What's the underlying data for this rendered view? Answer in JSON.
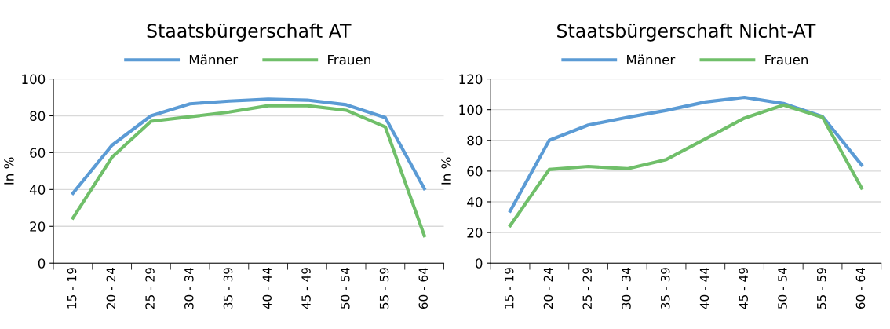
{
  "chart_data": [
    {
      "type": "line",
      "title": "Staatsbürgerschaft AT",
      "ylabel": "In %",
      "categories": [
        "15 - 19",
        "20 - 24",
        "25 - 29",
        "30 - 34",
        "35 - 39",
        "40 - 44",
        "45 - 49",
        "50 - 54",
        "55 - 59",
        "60 - 64"
      ],
      "series": [
        {
          "name": "Männer",
          "color": "#5b9bd5",
          "values": [
            38,
            64,
            80,
            86.5,
            88,
            89,
            88.5,
            86,
            79,
            40.5
          ]
        },
        {
          "name": "Frauen",
          "color": "#70bf6a",
          "values": [
            24.5,
            57.5,
            77,
            79.5,
            82,
            85.5,
            85.5,
            83,
            74,
            15
          ]
        }
      ],
      "ylim": [
        0,
        100
      ],
      "yticks": [
        0,
        20,
        40,
        60,
        80,
        100
      ],
      "grid": "y",
      "legend": "top",
      "marker": "none",
      "line_style": "solid"
    },
    {
      "type": "line",
      "title": "Staatsbürgerschaft Nicht-AT",
      "ylabel": "In %",
      "categories": [
        "15 - 19",
        "20 - 24",
        "25 - 29",
        "30 - 34",
        "35 - 39",
        "40 - 44",
        "45 - 49",
        "50 - 54",
        "55 - 59",
        "60 - 64"
      ],
      "series": [
        {
          "name": "Männer",
          "color": "#5b9bd5",
          "values": [
            34,
            80,
            90,
            95,
            99.5,
            105,
            108,
            104,
            95.5,
            64
          ]
        },
        {
          "name": "Frauen",
          "color": "#70bf6a",
          "values": [
            24.5,
            61,
            63,
            61.5,
            67.5,
            81,
            94.5,
            103,
            95,
            49
          ]
        }
      ],
      "ylim": [
        0,
        120
      ],
      "yticks": [
        0,
        20,
        40,
        60,
        80,
        100,
        120
      ],
      "grid": "y",
      "legend": "top",
      "marker": "none",
      "line_style": "solid"
    }
  ]
}
